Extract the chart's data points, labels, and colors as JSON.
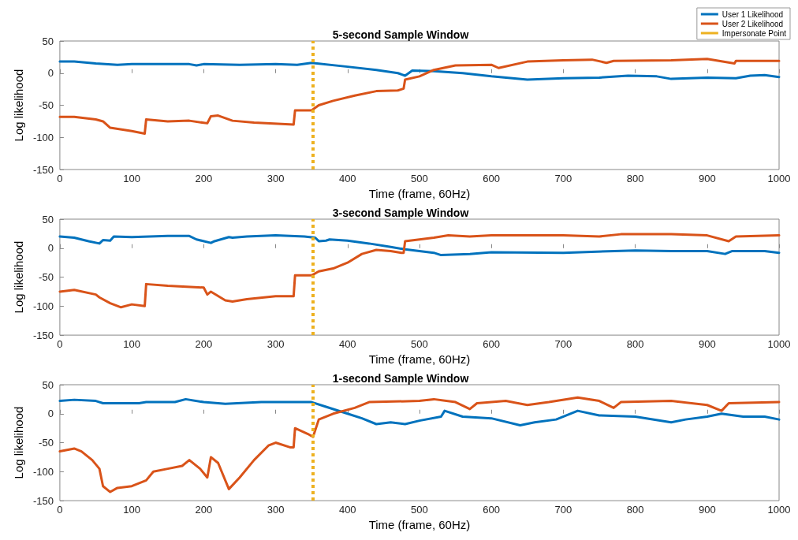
{
  "chart_data": [
    {
      "type": "line",
      "title": "5-second Sample Window",
      "xlabel": "Time (frame, 60Hz)",
      "ylabel": "Log likelihood",
      "xlim": [
        0,
        1000
      ],
      "xticks": [
        0,
        100,
        200,
        300,
        400,
        500,
        600,
        700,
        800,
        900,
        1000
      ],
      "ylim": [
        -150,
        50
      ],
      "yticks": [
        -150,
        -100,
        -50,
        0,
        50
      ],
      "grid": false,
      "legend": "top right",
      "line_style": "solid",
      "marker": "none",
      "ref_lines": [
        {
          "axis": "x",
          "value": 352,
          "label": "Impersonate Point",
          "color": "#edb120",
          "line_style": "dotted"
        }
      ],
      "series": [
        {
          "name": "User 1 Likelihood",
          "color": "#0072bd",
          "x": [
            0,
            20,
            50,
            80,
            100,
            180,
            190,
            200,
            250,
            300,
            330,
            350,
            400,
            440,
            470,
            480,
            490,
            520,
            560,
            600,
            650,
            700,
            750,
            790,
            830,
            850,
            900,
            940,
            960,
            980,
            1000
          ],
          "values": [
            18,
            18,
            15,
            13,
            14,
            14,
            12,
            14,
            13,
            14,
            13,
            16,
            10,
            5,
            0,
            -4,
            4,
            3,
            0,
            -5,
            -10,
            -8,
            -7,
            -4,
            -5,
            -9,
            -7,
            -8,
            -4,
            -3,
            -6
          ]
        },
        {
          "name": "User 2 Likelihood",
          "color": "#d95319",
          "x": [
            0,
            20,
            50,
            60,
            70,
            100,
            118,
            120,
            150,
            180,
            205,
            210,
            220,
            240,
            270,
            325,
            327,
            350,
            360,
            380,
            410,
            440,
            470,
            478,
            480,
            500,
            520,
            550,
            600,
            610,
            650,
            700,
            740,
            760,
            770,
            850,
            900,
            938,
            940,
            1000
          ],
          "values": [
            -68,
            -68,
            -72,
            -75,
            -85,
            -90,
            -94,
            -72,
            -75,
            -74,
            -78,
            -67,
            -66,
            -74,
            -77,
            -80,
            -58,
            -58,
            -50,
            -43,
            -35,
            -28,
            -27,
            -24,
            -10,
            -5,
            5,
            12,
            13,
            8,
            18,
            20,
            21,
            16,
            19,
            20,
            22,
            15,
            19,
            19
          ]
        }
      ]
    },
    {
      "type": "line",
      "title": "3-second Sample Window",
      "xlabel": "Time (frame, 60Hz)",
      "ylabel": "Log likelihood",
      "xlim": [
        0,
        1000
      ],
      "xticks": [
        0,
        100,
        200,
        300,
        400,
        500,
        600,
        700,
        800,
        900,
        1000
      ],
      "ylim": [
        -150,
        50
      ],
      "yticks": [
        -150,
        -100,
        -50,
        0,
        50
      ],
      "grid": false,
      "legend": false,
      "line_style": "solid",
      "marker": "none",
      "ref_lines": [
        {
          "axis": "x",
          "value": 352,
          "color": "#edb120",
          "line_style": "dotted"
        }
      ],
      "series": [
        {
          "color": "#0072bd",
          "x": [
            0,
            20,
            40,
            55,
            60,
            70,
            75,
            100,
            150,
            180,
            190,
            210,
            215,
            235,
            240,
            260,
            300,
            340,
            355,
            360,
            370,
            375,
            400,
            430,
            460,
            480,
            500,
            520,
            530,
            570,
            600,
            700,
            800,
            850,
            900,
            925,
            935,
            980,
            1000
          ],
          "values": [
            20,
            18,
            12,
            8,
            14,
            13,
            20,
            19,
            21,
            21,
            15,
            9,
            12,
            19,
            18,
            20,
            22,
            20,
            18,
            12,
            13,
            15,
            13,
            8,
            2,
            -2,
            -5,
            -8,
            -12,
            -10,
            -7,
            -8,
            -4,
            -5,
            -5,
            -10,
            -5,
            -5,
            -8
          ]
        },
        {
          "color": "#d95319",
          "x": [
            0,
            20,
            50,
            55,
            70,
            85,
            100,
            118,
            120,
            150,
            200,
            205,
            210,
            230,
            240,
            260,
            300,
            325,
            327,
            350,
            360,
            380,
            400,
            420,
            440,
            460,
            475,
            478,
            480,
            520,
            540,
            570,
            600,
            700,
            750,
            780,
            850,
            900,
            930,
            940,
            1000
          ],
          "values": [
            -75,
            -72,
            -80,
            -85,
            -95,
            -102,
            -97,
            -100,
            -62,
            -65,
            -68,
            -80,
            -75,
            -90,
            -92,
            -88,
            -83,
            -83,
            -47,
            -47,
            -40,
            -35,
            -25,
            -10,
            -3,
            -5,
            -8,
            -8,
            12,
            18,
            22,
            20,
            22,
            22,
            20,
            24,
            24,
            22,
            12,
            20,
            22
          ]
        }
      ]
    },
    {
      "type": "line",
      "title": "1-second Sample Window",
      "xlabel": "Time (frame, 60Hz)",
      "ylabel": "Log likelihood",
      "xlim": [
        0,
        1000
      ],
      "xticks": [
        0,
        100,
        200,
        300,
        400,
        500,
        600,
        700,
        800,
        900,
        1000
      ],
      "ylim": [
        -150,
        50
      ],
      "yticks": [
        -150,
        -100,
        -50,
        0,
        50
      ],
      "grid": false,
      "legend": false,
      "line_style": "solid",
      "marker": "none",
      "ref_lines": [
        {
          "axis": "x",
          "value": 352,
          "color": "#edb120",
          "line_style": "dotted"
        }
      ],
      "series": [
        {
          "color": "#0072bd",
          "x": [
            0,
            20,
            50,
            60,
            110,
            120,
            160,
            175,
            200,
            230,
            280,
            330,
            350,
            370,
            400,
            420,
            440,
            460,
            480,
            500,
            530,
            535,
            560,
            600,
            640,
            660,
            690,
            720,
            750,
            800,
            850,
            870,
            900,
            920,
            950,
            980,
            1000
          ],
          "values": [
            22,
            24,
            22,
            18,
            18,
            20,
            20,
            25,
            20,
            17,
            20,
            20,
            20,
            12,
            0,
            -8,
            -18,
            -15,
            -18,
            -12,
            -5,
            5,
            -5,
            -8,
            -20,
            -15,
            -10,
            5,
            -3,
            -5,
            -15,
            -10,
            -5,
            0,
            -5,
            -5,
            -10
          ]
        },
        {
          "color": "#d95319",
          "x": [
            0,
            20,
            30,
            45,
            55,
            60,
            70,
            80,
            100,
            120,
            130,
            150,
            170,
            180,
            195,
            205,
            210,
            220,
            235,
            250,
            270,
            290,
            300,
            320,
            325,
            327,
            345,
            352,
            360,
            380,
            410,
            430,
            500,
            520,
            550,
            570,
            580,
            620,
            650,
            680,
            720,
            750,
            770,
            780,
            850,
            900,
            920,
            930,
            1000
          ],
          "values": [
            -65,
            -60,
            -65,
            -80,
            -95,
            -125,
            -135,
            -128,
            -125,
            -115,
            -100,
            -95,
            -90,
            -80,
            -95,
            -110,
            -75,
            -85,
            -130,
            -110,
            -80,
            -55,
            -50,
            -58,
            -58,
            -25,
            -35,
            -40,
            -10,
            0,
            10,
            20,
            22,
            25,
            20,
            8,
            18,
            22,
            15,
            20,
            28,
            22,
            10,
            20,
            22,
            15,
            5,
            18,
            20
          ]
        }
      ]
    }
  ]
}
